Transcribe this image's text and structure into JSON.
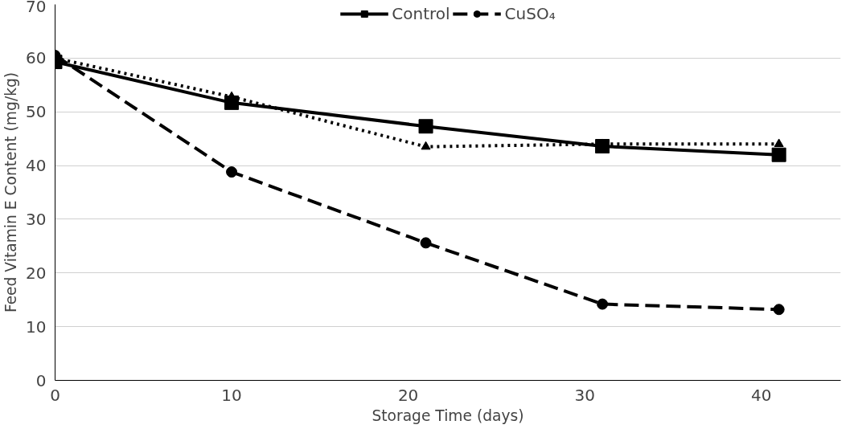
{
  "chart_data": {
    "type": "line",
    "xlabel": "Storage Time (days)",
    "ylabel": "Feed Vitamin E Content (mg/kg)",
    "xlim": [
      0,
      44.5
    ],
    "xticks": [
      0,
      10,
      20,
      30,
      40
    ],
    "ylim": [
      0,
      70
    ],
    "yticks": [
      0,
      10,
      20,
      30,
      40,
      50,
      60,
      70
    ],
    "grid": "y",
    "legend": "top",
    "series": [
      {
        "name": "Control",
        "color": "#000000",
        "marker": "square",
        "line_style": "solid",
        "x": [
          0,
          10,
          21,
          31,
          41
        ],
        "values": [
          59.3,
          51.7,
          47.3,
          43.6,
          42.0
        ]
      },
      {
        "name": "CuSO₄",
        "color": "#000000",
        "marker": "circle",
        "line_style": "dashed",
        "x": [
          0,
          10,
          21,
          31,
          41
        ],
        "values": [
          60.5,
          38.8,
          25.6,
          14.2,
          13.2
        ]
      },
      {
        "color": "#000000",
        "marker": "triangle",
        "line_style": "dotted",
        "x": [
          0,
          10,
          21,
          31,
          41
        ],
        "values": [
          60.0,
          52.8,
          43.5,
          44.0,
          44.0
        ]
      }
    ]
  }
}
